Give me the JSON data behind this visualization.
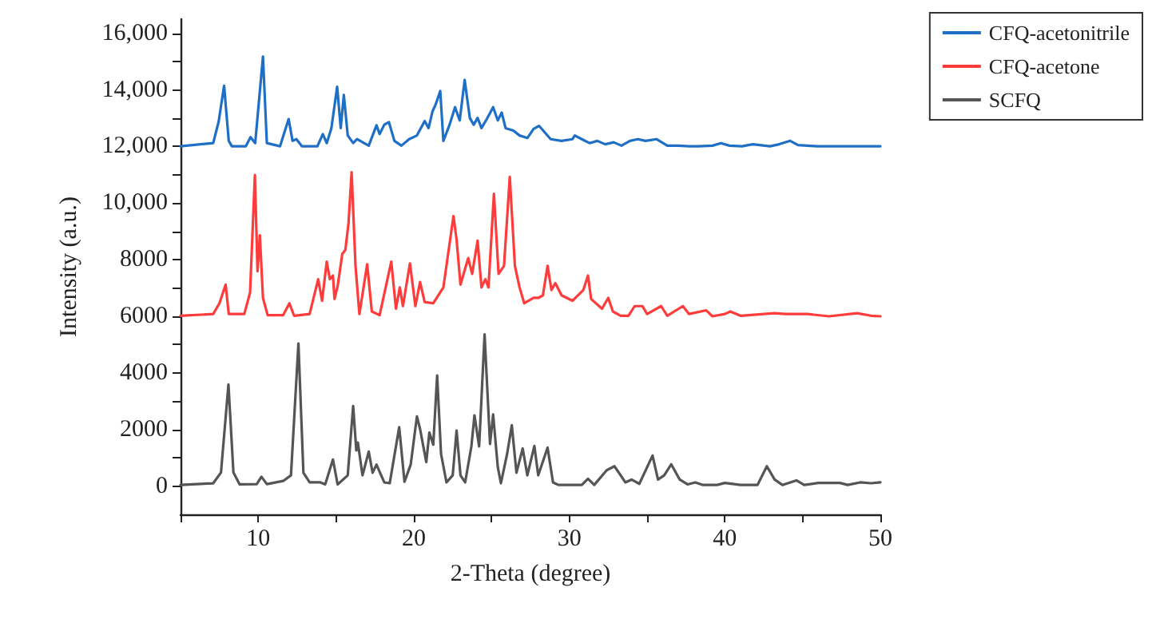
{
  "chart_data": {
    "type": "line",
    "xlabel": "2-Theta (degree)",
    "ylabel": "Intensity (a.u.)",
    "xlim": [
      5,
      50
    ],
    "ylim": [
      -1000,
      16500
    ],
    "xticks": [
      {
        "value": 5,
        "label": null
      },
      10,
      {
        "value": 15,
        "label": null
      },
      20,
      {
        "value": 25,
        "label": null
      },
      30,
      {
        "value": 35,
        "label": null
      },
      40,
      {
        "value": 45,
        "label": null
      },
      50
    ],
    "yticks": [
      0,
      {
        "value": 1000,
        "label": null
      },
      2000,
      {
        "value": 3000,
        "label": null
      },
      4000,
      {
        "value": 5000,
        "label": null
      },
      6000,
      {
        "value": 7000,
        "label": null
      },
      8000,
      {
        "value": 9000,
        "label": null
      },
      {
        "value": 10000,
        "label": "10,000"
      },
      {
        "value": 11000,
        "label": null
      },
      {
        "value": 12000,
        "label": "12,000"
      },
      {
        "value": 13000,
        "label": null
      },
      {
        "value": 14000,
        "label": "14,000"
      },
      {
        "value": 15000,
        "label": null
      },
      {
        "value": 16000,
        "label": "16,000"
      }
    ],
    "legend": "top right",
    "marker": "none",
    "line_style": "solid",
    "series": [
      {
        "name": "CFQ-acetonitrile",
        "color": "#1f6fc6",
        "x": [
          5.0,
          7.1,
          7.45,
          7.8,
          8.1,
          8.3,
          9.2,
          9.5,
          9.8,
          10.3,
          10.55,
          11.4,
          11.95,
          12.2,
          12.45,
          12.8,
          13.8,
          14.15,
          14.4,
          14.7,
          15.07,
          15.3,
          15.5,
          15.75,
          16.1,
          16.35,
          16.8,
          17.1,
          17.6,
          17.8,
          18.1,
          18.4,
          18.75,
          19.2,
          19.7,
          20.2,
          20.7,
          20.95,
          21.2,
          21.4,
          21.7,
          21.9,
          22.3,
          22.65,
          22.95,
          23.27,
          23.6,
          23.85,
          24.1,
          24.35,
          24.7,
          25.1,
          25.4,
          25.65,
          25.9,
          26.4,
          26.8,
          27.3,
          27.7,
          28.05,
          28.8,
          29.5,
          30.2,
          30.35,
          30.8,
          31.3,
          31.8,
          32.3,
          32.85,
          33.35,
          33.9,
          34.4,
          34.9,
          35.6,
          36.3,
          37.0,
          37.7,
          38.3,
          39.2,
          39.75,
          40.3,
          41.1,
          41.8,
          42.9,
          43.5,
          44.2,
          44.7,
          45.9,
          47.3,
          48.7,
          50.0
        ],
        "values": [
          12010,
          12120,
          12880,
          14150,
          12200,
          12010,
          12010,
          12330,
          12120,
          15180,
          12120,
          12010,
          12970,
          12200,
          12260,
          12010,
          12010,
          12440,
          12120,
          12650,
          14110,
          12650,
          13820,
          12390,
          12120,
          12260,
          12120,
          12030,
          12750,
          12440,
          12770,
          12860,
          12200,
          12030,
          12260,
          12390,
          12900,
          12650,
          13240,
          13480,
          13960,
          12200,
          12770,
          13390,
          12920,
          14350,
          13010,
          12770,
          13010,
          12650,
          12980,
          13390,
          12920,
          13200,
          12650,
          12560,
          12390,
          12300,
          12620,
          12730,
          12260,
          12200,
          12260,
          12390,
          12260,
          12120,
          12200,
          12080,
          12150,
          12030,
          12200,
          12260,
          12200,
          12260,
          12030,
          12030,
          12010,
          12010,
          12030,
          12120,
          12030,
          12010,
          12080,
          12010,
          12080,
          12200,
          12050,
          12010,
          12010,
          12010,
          12010
        ]
      },
      {
        "name": "CFQ-acetone",
        "color": "#ff3c3c",
        "x": [
          5.0,
          7.1,
          7.5,
          7.9,
          8.1,
          9.1,
          9.47,
          9.78,
          9.95,
          10.1,
          10.3,
          10.6,
          11.6,
          12.0,
          12.3,
          13.3,
          13.85,
          14.1,
          14.4,
          14.6,
          14.8,
          14.9,
          15.1,
          15.4,
          15.6,
          15.8,
          16.0,
          16.25,
          16.5,
          17.0,
          17.3,
          17.8,
          18.55,
          18.85,
          19.1,
          19.3,
          19.75,
          20.1,
          20.4,
          20.7,
          21.25,
          21.9,
          22.55,
          22.75,
          23.0,
          23.5,
          23.75,
          24.1,
          24.35,
          24.6,
          24.8,
          25.15,
          25.45,
          25.8,
          26.17,
          26.5,
          26.8,
          27.1,
          27.7,
          28.0,
          28.3,
          28.6,
          28.85,
          29.1,
          29.5,
          30.2,
          30.55,
          30.9,
          31.2,
          31.4,
          32.1,
          32.5,
          32.8,
          33.3,
          33.8,
          34.2,
          34.7,
          35.0,
          35.9,
          36.3,
          37.3,
          37.7,
          38.8,
          39.2,
          40.0,
          40.35,
          41.0,
          43.2,
          43.9,
          45.3,
          46.7,
          48.5,
          49.4,
          50.0
        ],
        "values": [
          6020,
          6080,
          6460,
          7120,
          6080,
          6080,
          6840,
          10990,
          7590,
          8860,
          6650,
          6040,
          6040,
          6460,
          6020,
          6080,
          7310,
          6550,
          7930,
          7310,
          7440,
          6610,
          7060,
          8200,
          8350,
          9290,
          11090,
          7780,
          6080,
          7840,
          6170,
          6040,
          7930,
          6270,
          7020,
          6360,
          7870,
          6360,
          7210,
          6500,
          6460,
          7020,
          9540,
          8710,
          7120,
          8060,
          7500,
          8670,
          7020,
          7310,
          7020,
          10330,
          7500,
          7780,
          10930,
          7780,
          7020,
          6460,
          6650,
          6650,
          6740,
          7780,
          6930,
          7170,
          6740,
          6550,
          6740,
          6930,
          7440,
          6610,
          6270,
          6650,
          6170,
          6020,
          6020,
          6360,
          6360,
          6080,
          6360,
          6020,
          6360,
          6080,
          6210,
          6000,
          6080,
          6170,
          6020,
          6110,
          6080,
          6080,
          6000,
          6110,
          6020,
          6000
        ]
      },
      {
        "name": "SCFQ",
        "color": "#555555",
        "x": [
          5.0,
          7.1,
          7.6,
          8.08,
          8.4,
          8.8,
          9.9,
          10.2,
          10.55,
          11.6,
          12.1,
          12.58,
          12.9,
          13.3,
          14.0,
          14.3,
          14.8,
          15.1,
          15.75,
          16.1,
          16.3,
          16.4,
          16.7,
          17.1,
          17.35,
          17.6,
          17.9,
          18.1,
          18.45,
          19.06,
          19.4,
          19.8,
          20.2,
          20.4,
          20.8,
          21.0,
          21.25,
          21.5,
          21.75,
          22.1,
          22.5,
          22.75,
          23.0,
          23.3,
          23.7,
          23.9,
          24.2,
          24.55,
          24.9,
          25.1,
          25.4,
          25.6,
          26.0,
          26.3,
          26.6,
          27.0,
          27.3,
          27.75,
          28.0,
          28.6,
          28.95,
          29.3,
          30.8,
          31.2,
          31.6,
          32.4,
          32.9,
          33.3,
          33.6,
          34.0,
          34.5,
          35.35,
          35.7,
          36.1,
          36.55,
          37.1,
          37.6,
          38.1,
          38.6,
          39.5,
          40.0,
          41.0,
          42.1,
          42.7,
          43.2,
          43.7,
          44.6,
          45.1,
          46.0,
          47.4,
          47.9,
          48.7,
          49.4,
          50.0
        ],
        "values": [
          40,
          100,
          480,
          3590,
          480,
          60,
          70,
          330,
          70,
          180,
          380,
          5040,
          470,
          130,
          130,
          60,
          940,
          60,
          380,
          2830,
          1260,
          1540,
          380,
          1220,
          470,
          760,
          380,
          130,
          100,
          2080,
          150,
          760,
          2460,
          2020,
          850,
          1890,
          1460,
          3910,
          1140,
          130,
          380,
          1960,
          380,
          130,
          1400,
          2500,
          1400,
          5360,
          1490,
          2530,
          670,
          100,
          1140,
          2150,
          470,
          1330,
          380,
          1420,
          380,
          1360,
          130,
          40,
          40,
          260,
          40,
          560,
          700,
          380,
          130,
          230,
          80,
          1080,
          230,
          380,
          770,
          230,
          60,
          130,
          40,
          40,
          110,
          40,
          40,
          700,
          230,
          40,
          200,
          40,
          110,
          110,
          40,
          130,
          100,
          130
        ]
      }
    ]
  }
}
